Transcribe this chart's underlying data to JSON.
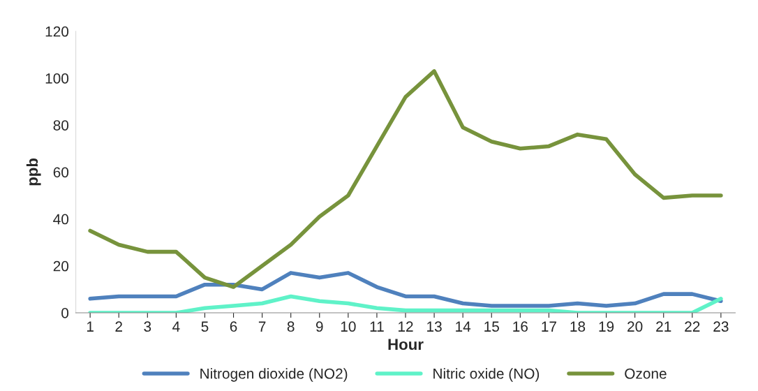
{
  "chart_data": {
    "type": "line",
    "xlabel": "Hour",
    "ylabel": "ppb",
    "categories": [
      "1",
      "2",
      "3",
      "4",
      "5",
      "6",
      "7",
      "8",
      "9",
      "10",
      "11",
      "12",
      "13",
      "14",
      "15",
      "16",
      "17",
      "18",
      "19",
      "20",
      "21",
      "22",
      "23"
    ],
    "series": [
      {
        "name": "Nitrogen dioxide (NO2)",
        "color": "#4f81bd",
        "values": [
          6,
          7,
          7,
          7,
          12,
          12,
          10,
          17,
          15,
          17,
          11,
          7,
          7,
          4,
          3,
          3,
          3,
          4,
          3,
          4,
          8,
          8,
          5
        ]
      },
      {
        "name": "Nitric oxide (NO)",
        "color": "#5ff2c8",
        "values": [
          0,
          0,
          0,
          0,
          2,
          3,
          4,
          7,
          5,
          4,
          2,
          1,
          1,
          1,
          1,
          1,
          1,
          0,
          0,
          0,
          0,
          0,
          6
        ]
      },
      {
        "name": "Ozone",
        "color": "#77933c",
        "values": [
          35,
          29,
          26,
          26,
          15,
          11,
          20,
          29,
          41,
          50,
          71,
          92,
          103,
          79,
          73,
          70,
          71,
          76,
          74,
          59,
          49,
          50,
          50
        ]
      }
    ],
    "ylim": [
      0,
      120
    ],
    "yticks": [
      0,
      20,
      40,
      60,
      80,
      100,
      120
    ],
    "grid": false,
    "legend": "bottom",
    "marker": "none",
    "line_style": "solid"
  }
}
